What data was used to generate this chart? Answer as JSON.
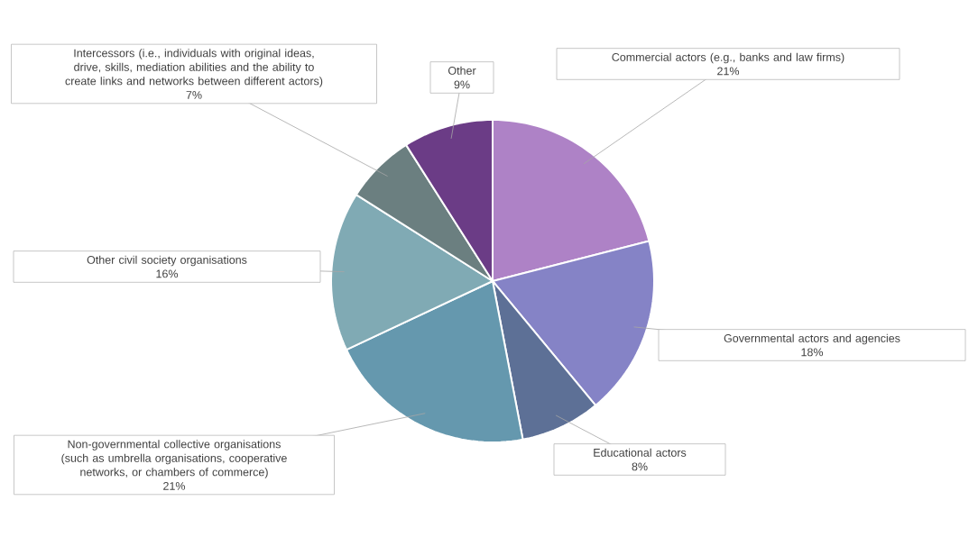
{
  "chart_data": {
    "type": "pie",
    "categories": [
      "Commercial actors (e.g., banks and law firms)",
      "Governmental actors and agencies",
      "Educational actors",
      "Non-governmental collective organisations (such as umbrella organisations, cooperative networks, or chambers of commerce)",
      "Other civil society organisations",
      "Intercessors (i.e., individuals with original ideas, drive, skills, mediation abilities and the ability to create links and networks between different actors)",
      "Other"
    ],
    "values": [
      21,
      18,
      8,
      21,
      16,
      7,
      9
    ],
    "value_labels": [
      "21%",
      "18%",
      "8%",
      "21%",
      "16%",
      "7%",
      "9%"
    ],
    "colors": [
      "#ae82c6",
      "#8583c6",
      "#5d7096",
      "#6598ae",
      "#80aab4",
      "#6b7f80",
      "#6b3c86"
    ]
  }
}
